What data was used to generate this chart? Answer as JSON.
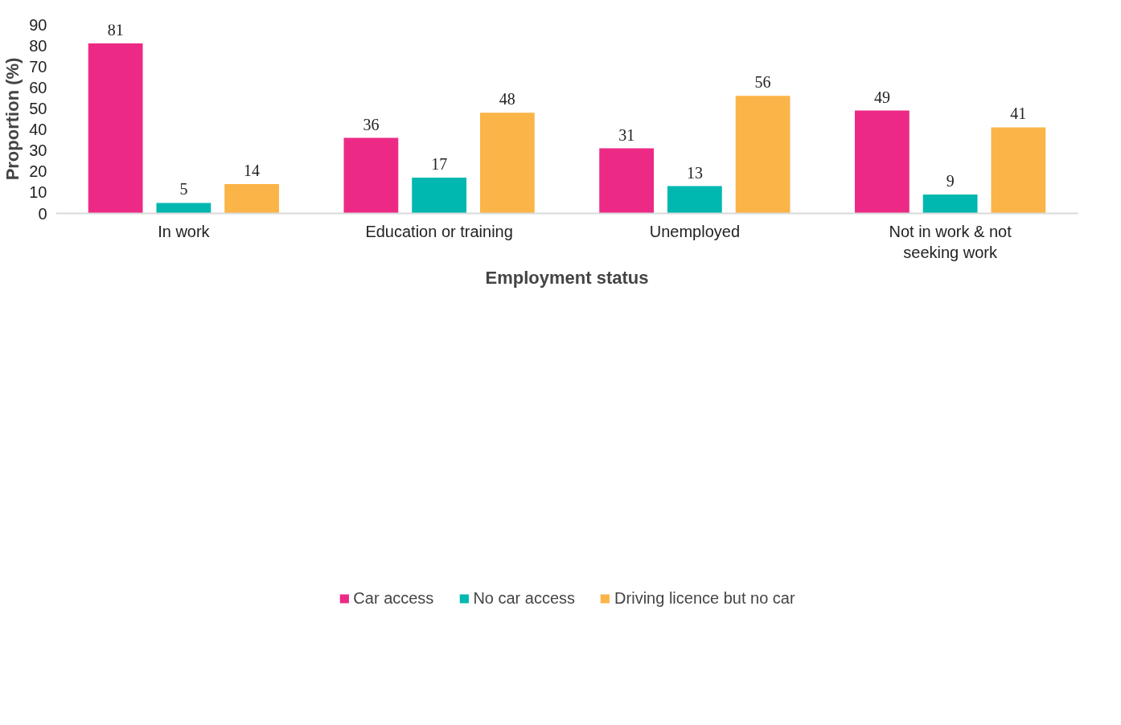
{
  "chart_data": {
    "type": "bar",
    "xlabel": "Employment status",
    "ylabel": "Proportion (%)",
    "categories": [
      "In work",
      "Education or training",
      "Unemployed",
      "Not in work & not seeking work"
    ],
    "series": [
      {
        "name": "Car access",
        "color": "#ec2a85",
        "values": [
          81,
          36,
          31,
          49
        ]
      },
      {
        "name": "No car access",
        "color": "#00b8b0",
        "values": [
          5,
          17,
          13,
          9
        ]
      },
      {
        "name": "Driving licence but no car",
        "color": "#fbb447",
        "values": [
          14,
          48,
          56,
          41
        ]
      }
    ],
    "ylim": [
      0,
      90
    ],
    "yticks": [
      0,
      10,
      20,
      30,
      40,
      50,
      60,
      70,
      80,
      90
    ],
    "grid": false,
    "legend": "bottom",
    "data_labels": true
  }
}
